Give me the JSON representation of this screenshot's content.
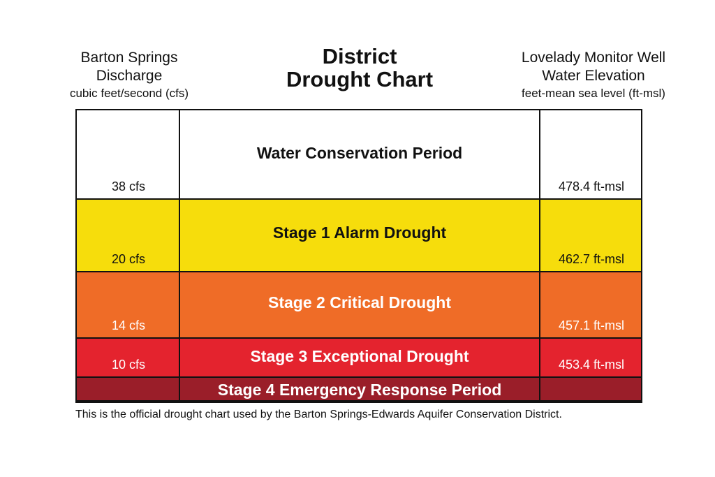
{
  "header": {
    "left": {
      "line1": "Barton Springs",
      "line2": "Discharge",
      "line3": "cubic feet/second (cfs)"
    },
    "center": {
      "line1": "District",
      "line2": "Drought Chart"
    },
    "right": {
      "line1": "Lovelady Monitor Well",
      "line2": "Water Elevation",
      "line3": "feet-mean sea level (ft-msl)"
    }
  },
  "stages": [
    {
      "label": "Water Conservation Period",
      "cfs": "38 cfs",
      "msl": "478.4 ft-msl",
      "color": "#ffffff",
      "text_color": "#111111"
    },
    {
      "label": "Stage 1 Alarm Drought",
      "cfs": "20 cfs",
      "msl": "462.7 ft-msl",
      "color": "#f6dd0c",
      "text_color": "#111111"
    },
    {
      "label": "Stage 2 Critical Drought",
      "cfs": "14 cfs",
      "msl": "457.1 ft-msl",
      "color": "#ef6c27",
      "text_color": "#ffffff"
    },
    {
      "label": "Stage 3 Exceptional Drought",
      "cfs": "10 cfs",
      "msl": "453.4 ft-msl",
      "color": "#e4232e",
      "text_color": "#ffffff"
    },
    {
      "label": "Stage 4 Emergency Response Period",
      "cfs": "",
      "msl": "",
      "color": "#9a1e29",
      "text_color": "#ffffff"
    }
  ],
  "caption": "This is the official drought chart used by the Barton Springs-Edwards Aquifer Conservation District."
}
